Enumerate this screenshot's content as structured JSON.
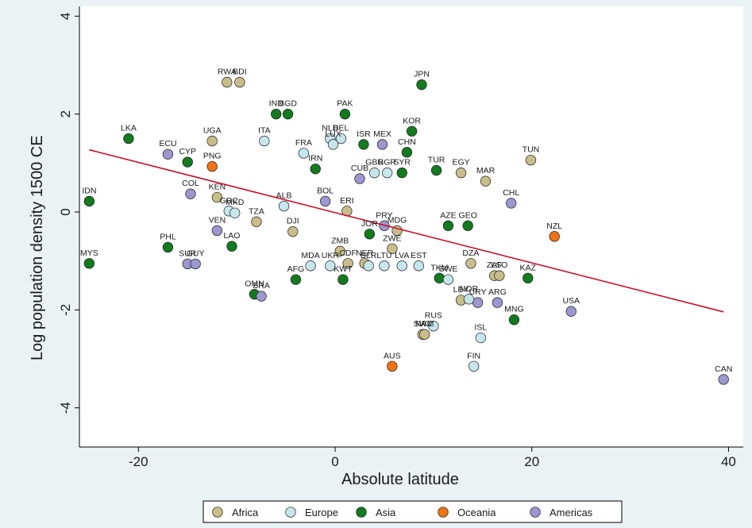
{
  "chart_data": {
    "type": "scatter",
    "xlabel": "Absolute latitude",
    "ylabel": "Log population density 1500 CE",
    "xlim": [
      -26,
      41.5
    ],
    "ylim": [
      -4.8,
      4.2
    ],
    "xticks": [
      -20,
      0,
      20,
      40
    ],
    "yticks": [
      -4,
      -2,
      0,
      2,
      4
    ],
    "grid": false,
    "legend_position": "bottom",
    "fit_line": {
      "x": [
        -25,
        39.5
      ],
      "y": [
        1.27,
        -2.04
      ],
      "color": "#c8102e"
    },
    "groups": [
      {
        "name": "Africa",
        "color": "#c9bd8a"
      },
      {
        "name": "Europe",
        "color": "#c6e6ec"
      },
      {
        "name": "Asia",
        "color": "#137a1f"
      },
      {
        "name": "Oceania",
        "color": "#f07316"
      },
      {
        "name": "Americas",
        "color": "#9c97cf"
      }
    ],
    "points": [
      {
        "label": "RWA",
        "x": -11,
        "y": 2.65,
        "group": "Africa"
      },
      {
        "label": "BDI",
        "x": -9.7,
        "y": 2.65,
        "group": "Africa"
      },
      {
        "label": "UGA",
        "x": -12.5,
        "y": 1.45,
        "group": "Africa"
      },
      {
        "label": "EGY",
        "x": 12.8,
        "y": 0.8,
        "group": "Africa"
      },
      {
        "label": "TUN",
        "x": 19.9,
        "y": 1.06,
        "group": "Africa"
      },
      {
        "label": "MAR",
        "x": 15.3,
        "y": 0.63,
        "group": "Africa"
      },
      {
        "label": "KEN",
        "x": -12,
        "y": 0.3,
        "group": "Africa"
      },
      {
        "label": "ERI",
        "x": 1.2,
        "y": 0.02,
        "group": "Africa"
      },
      {
        "label": "DJI",
        "x": -4.3,
        "y": -0.4,
        "group": "Africa"
      },
      {
        "label": "TZA",
        "x": -8,
        "y": -0.2,
        "group": "Africa"
      },
      {
        "label": "MDG",
        "x": 6.3,
        "y": -0.38,
        "group": "Africa"
      },
      {
        "label": "ZMB",
        "x": 0.5,
        "y": -0.8,
        "group": "Africa"
      },
      {
        "label": "ZWE",
        "x": 5.8,
        "y": -0.75,
        "group": "Africa"
      },
      {
        "label": "CDF",
        "x": 1.3,
        "y": -1.05,
        "group": "Africa"
      },
      {
        "label": "NER",
        "x": 3,
        "y": -1.05,
        "group": "Africa"
      },
      {
        "label": "DZA",
        "x": 13.8,
        "y": -1.05,
        "group": "Africa"
      },
      {
        "label": "ZAF",
        "x": 16.2,
        "y": -1.3,
        "group": "Africa"
      },
      {
        "label": "LSO",
        "x": 16.7,
        "y": -1.3,
        "group": "Africa"
      },
      {
        "label": "LBY",
        "x": 12.8,
        "y": -1.8,
        "group": "Africa"
      },
      {
        "label": "SWZ",
        "x": 8.9,
        "y": -2.5,
        "group": "Africa"
      },
      {
        "label": "NAM",
        "x": 9.1,
        "y": -2.5,
        "group": "Africa"
      },
      {
        "label": "TUR",
        "x": 10.3,
        "y": 0.85,
        "group": "Asia"
      },
      {
        "label": "LKA",
        "x": -21,
        "y": 1.5,
        "group": "Asia"
      },
      {
        "label": "IDN",
        "x": -25,
        "y": 0.22,
        "group": "Asia"
      },
      {
        "label": "MYS",
        "x": -25,
        "y": -1.05,
        "group": "Asia"
      },
      {
        "label": "PHL",
        "x": -17,
        "y": -0.72,
        "group": "Asia"
      },
      {
        "label": "LAO",
        "x": -10.5,
        "y": -0.7,
        "group": "Asia"
      },
      {
        "label": "IND",
        "x": -6,
        "y": 2,
        "group": "Asia"
      },
      {
        "label": "BGD",
        "x": -4.8,
        "y": 2,
        "group": "Asia"
      },
      {
        "label": "PAK",
        "x": 1,
        "y": 2,
        "group": "Asia"
      },
      {
        "label": "JPN",
        "x": 8.8,
        "y": 2.6,
        "group": "Asia"
      },
      {
        "label": "KOR",
        "x": 7.8,
        "y": 1.65,
        "group": "Asia"
      },
      {
        "label": "CHN",
        "x": 7.3,
        "y": 1.22,
        "group": "Asia"
      },
      {
        "label": "ISR",
        "x": 2.9,
        "y": 1.38,
        "group": "Asia"
      },
      {
        "label": "SYR",
        "x": 6.8,
        "y": 0.8,
        "group": "Asia"
      },
      {
        "label": "JOR",
        "x": 3.5,
        "y": -0.45,
        "group": "Asia"
      },
      {
        "label": "KAZ",
        "x": 19.6,
        "y": -1.35,
        "group": "Asia"
      },
      {
        "label": "MNG",
        "x": 18.2,
        "y": -2.2,
        "group": "Asia"
      },
      {
        "label": "AZE",
        "x": 11.5,
        "y": -0.28,
        "group": "Asia"
      },
      {
        "label": "GEO",
        "x": 13.5,
        "y": -0.28,
        "group": "Asia"
      },
      {
        "label": "OMN",
        "x": -8.2,
        "y": -1.68,
        "group": "Asia"
      },
      {
        "label": "TKM",
        "x": 10.6,
        "y": -1.35,
        "group": "Asia"
      },
      {
        "label": "KWT",
        "x": 0.8,
        "y": -1.38,
        "group": "Asia"
      },
      {
        "label": "IRN",
        "x": -2,
        "y": 0.88,
        "group": "Asia"
      },
      {
        "label": "AFG",
        "x": -4,
        "y": -1.38,
        "group": "Asia"
      },
      {
        "label": "CYP",
        "x": -15,
        "y": 1.02,
        "group": "Asia"
      },
      {
        "label": "PNG",
        "x": -12.5,
        "y": 0.93,
        "group": "Oceania"
      },
      {
        "label": "NZL",
        "x": 22.3,
        "y": -0.5,
        "group": "Oceania"
      },
      {
        "label": "AUS",
        "x": 5.8,
        "y": -3.15,
        "group": "Oceania"
      },
      {
        "label": "ECU",
        "x": -17,
        "y": 1.18,
        "group": "Americas"
      },
      {
        "label": "COL",
        "x": -14.7,
        "y": 0.37,
        "group": "Americas"
      },
      {
        "label": "VEN",
        "x": -12,
        "y": -0.38,
        "group": "Americas"
      },
      {
        "label": "BOL",
        "x": -1,
        "y": 0.22,
        "group": "Americas"
      },
      {
        "label": "PRY",
        "x": 5,
        "y": -0.28,
        "group": "Americas"
      },
      {
        "label": "BRA",
        "x": -7.5,
        "y": -1.72,
        "group": "Americas"
      },
      {
        "label": "SUR",
        "x": -15,
        "y": -1.06,
        "group": "Americas"
      },
      {
        "label": "GUY",
        "x": -14.2,
        "y": -1.06,
        "group": "Americas"
      },
      {
        "label": "MEX",
        "x": 4.8,
        "y": 1.38,
        "group": "Americas"
      },
      {
        "label": "CHL",
        "x": 17.9,
        "y": 0.18,
        "group": "Americas"
      },
      {
        "label": "URY",
        "x": 14.5,
        "y": -1.85,
        "group": "Americas"
      },
      {
        "label": "ARG",
        "x": 16.5,
        "y": -1.85,
        "group": "Americas"
      },
      {
        "label": "USA",
        "x": 24,
        "y": -2.03,
        "group": "Americas"
      },
      {
        "label": "CAN",
        "x": 39.5,
        "y": -3.42,
        "group": "Americas"
      },
      {
        "label": "CUB",
        "x": 2.5,
        "y": 0.68,
        "group": "Americas"
      },
      {
        "label": "ITA",
        "x": -7.2,
        "y": 1.45,
        "group": "Europe"
      },
      {
        "label": "NLD",
        "x": -0.5,
        "y": 1.5,
        "group": "Europe"
      },
      {
        "label": "BEL",
        "x": 0.6,
        "y": 1.5,
        "group": "Europe"
      },
      {
        "label": "FRA",
        "x": -3.2,
        "y": 1.2,
        "group": "Europe"
      },
      {
        "label": "LUX",
        "x": -0.2,
        "y": 1.38,
        "group": "Europe"
      },
      {
        "label": "GBR",
        "x": 4,
        "y": 0.8,
        "group": "Europe"
      },
      {
        "label": "BGR",
        "x": 5.3,
        "y": 0.8,
        "group": "Europe"
      },
      {
        "label": "GRC",
        "x": -10.8,
        "y": 0.02,
        "group": "Europe"
      },
      {
        "label": "MKD",
        "x": -10.2,
        "y": -0.02,
        "group": "Europe"
      },
      {
        "label": "MDA",
        "x": -2.5,
        "y": -1.1,
        "group": "Europe"
      },
      {
        "label": "UKR",
        "x": -0.5,
        "y": -1.1,
        "group": "Europe"
      },
      {
        "label": "BLR",
        "x": 3.4,
        "y": -1.1,
        "group": "Europe"
      },
      {
        "label": "LTU",
        "x": 5,
        "y": -1.1,
        "group": "Europe"
      },
      {
        "label": "LVA",
        "x": 6.8,
        "y": -1.1,
        "group": "Europe"
      },
      {
        "label": "EST",
        "x": 8.5,
        "y": -1.1,
        "group": "Europe"
      },
      {
        "label": "NOR",
        "x": 13.6,
        "y": -1.78,
        "group": "Europe"
      },
      {
        "label": "SWE",
        "x": 11.5,
        "y": -1.38,
        "group": "Europe"
      },
      {
        "label": "RUS",
        "x": 10,
        "y": -2.33,
        "group": "Europe"
      },
      {
        "label": "ISL",
        "x": 14.8,
        "y": -2.57,
        "group": "Europe"
      },
      {
        "label": "FIN",
        "x": 14.1,
        "y": -3.15,
        "group": "Europe"
      },
      {
        "label": "ALB",
        "x": -5.2,
        "y": 0.12,
        "group": "Europe"
      }
    ]
  },
  "ui": {
    "legend": [
      "Africa",
      "Europe",
      "Asia",
      "Oceania",
      "Americas"
    ]
  }
}
